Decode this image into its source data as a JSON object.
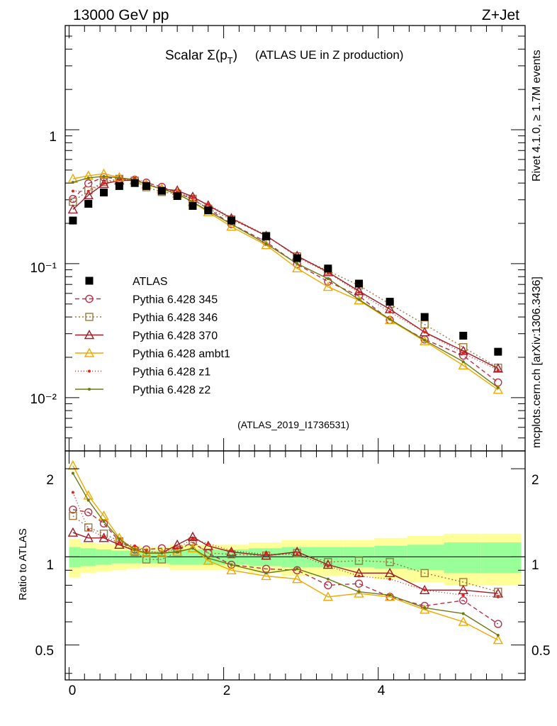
{
  "header": {
    "left": "13000 GeV pp",
    "right": "Z+Jet"
  },
  "side": {
    "rivet": "Rivet 4.1.0, ≥ 1.7M events",
    "mcplots": "mcplots.cern.ch [arXiv:1306.3436]"
  },
  "chart_data": {
    "type": "line",
    "title_main": "Scalar Σ(p",
    "title_sub": "T",
    "title_close": ")",
    "title_extra": "(ATLAS UE in Z production)",
    "watermark": "(ATLAS_2019_I1736531)",
    "x": [
      0.05,
      0.25,
      0.45,
      0.65,
      0.85,
      1.0,
      1.2,
      1.4,
      1.6,
      1.8,
      2.1,
      2.55,
      2.95,
      3.35,
      3.75,
      4.15,
      4.6,
      5.1,
      5.55
    ],
    "xlim": [
      -0.05,
      5.9
    ],
    "main_ylim": [
      0.004,
      6
    ],
    "ratio_ylim": [
      0.38,
      2.3
    ],
    "xticks": [
      "0",
      "2",
      "4"
    ],
    "main_yticks": [
      "1",
      "10⁻¹",
      "10⁻²"
    ],
    "ratio_yticks": [
      "2",
      "1",
      "0.5"
    ],
    "ratio_ylabel": "Ratio to ATLAS",
    "data": {
      "name": "ATLAS",
      "values": [
        0.21,
        0.28,
        0.34,
        0.38,
        0.4,
        0.38,
        0.35,
        0.32,
        0.27,
        0.25,
        0.21,
        0.16,
        0.11,
        0.092,
        0.071,
        0.052,
        0.04,
        0.029,
        0.022
      ]
    },
    "band_outer": [
      0.15,
      0.12,
      0.11,
      0.1,
      0.09,
      0.08,
      0.08,
      0.1,
      0.1,
      0.1,
      0.1,
      0.12,
      0.14,
      0.14,
      0.14,
      0.16,
      0.18,
      0.2,
      0.2
    ],
    "band_inner": [
      0.08,
      0.07,
      0.06,
      0.05,
      0.05,
      0.05,
      0.05,
      0.06,
      0.06,
      0.06,
      0.06,
      0.07,
      0.08,
      0.08,
      0.08,
      0.09,
      0.1,
      0.12,
      0.12
    ],
    "series": [
      {
        "name": "Pythia 6.428 345",
        "color": "#b5304a",
        "dash": "6,4",
        "marker": "circle",
        "ratio": [
          1.45,
          1.42,
          1.3,
          1.13,
          1.06,
          1.06,
          1.07,
          1.06,
          1.12,
          1.03,
          0.94,
          0.91,
          0.9,
          0.8,
          0.81,
          0.73,
          0.68,
          0.71,
          0.59
        ]
      },
      {
        "name": "Pythia 6.428 346",
        "color": "#a0783c",
        "dash": "2,3",
        "marker": "square",
        "ratio": [
          1.38,
          1.26,
          1.2,
          1.13,
          1.04,
          0.98,
          0.98,
          1.04,
          1.13,
          1.03,
          1.02,
          1.01,
          1.03,
          0.96,
          0.97,
          0.96,
          0.88,
          0.82,
          0.76
        ]
      },
      {
        "name": "Pythia 6.428 370",
        "color": "#9e1c26",
        "dash": "",
        "marker": "triangle-open",
        "ratio": [
          1.21,
          1.16,
          1.16,
          1.1,
          1.05,
          1.03,
          1.03,
          1.1,
          1.17,
          1.09,
          1.04,
          1.01,
          1.04,
          0.94,
          0.88,
          0.88,
          0.77,
          0.77,
          0.75
        ]
      },
      {
        "name": "Pythia 6.428 ambt1",
        "color": "#f0a800",
        "dash": "",
        "marker": "triangle-open",
        "ratio": [
          2.05,
          1.62,
          1.38,
          1.16,
          1.05,
          1.03,
          1.03,
          1.04,
          1.07,
          0.97,
          0.9,
          0.86,
          0.84,
          0.73,
          0.75,
          0.73,
          0.66,
          0.6,
          0.52
        ]
      },
      {
        "name": "Pythia 6.428 z1",
        "color": "#e0241c",
        "dash": "1,3",
        "marker": "dot",
        "ratio": [
          1.66,
          1.24,
          1.17,
          1.12,
          1.09,
          1.05,
          1.03,
          1.07,
          1.15,
          1.11,
          1.05,
          1.02,
          1.02,
          0.93,
          0.86,
          0.84,
          0.77,
          0.74,
          0.73
        ]
      },
      {
        "name": "Pythia 6.428 z2",
        "color": "#6b7a14",
        "dash": "",
        "marker": "dot",
        "ratio": [
          1.93,
          1.56,
          1.32,
          1.15,
          1.06,
          1.03,
          1.03,
          1.04,
          1.07,
          0.99,
          0.94,
          0.88,
          0.91,
          0.84,
          0.76,
          0.74,
          0.67,
          0.64,
          0.54
        ]
      }
    ]
  },
  "colors": {
    "band_outer": "#ffff99",
    "band_inner": "#99ff99"
  }
}
